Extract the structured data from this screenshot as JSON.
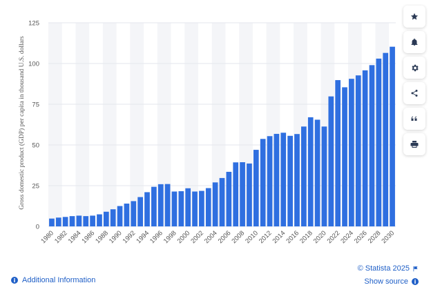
{
  "chart_data": {
    "type": "bar",
    "title": "",
    "xlabel": "",
    "ylabel": "Gross domestic product (GDP) per capita in thousand U.S. dollars",
    "ylim": [
      0,
      125
    ],
    "yticks": [
      0,
      25,
      50,
      75,
      100,
      125
    ],
    "grid": true,
    "bar_color": "#2f6fe0",
    "categories": [
      "1980",
      "1981",
      "1982",
      "1983",
      "1984",
      "1985",
      "1986",
      "1987",
      "1988",
      "1989",
      "1990",
      "1991",
      "1992",
      "1993",
      "1994",
      "1995",
      "1996",
      "1997",
      "1998",
      "1999",
      "2000",
      "2001",
      "2002",
      "2003",
      "2004",
      "2005",
      "2006",
      "2007",
      "2008",
      "2009",
      "2010",
      "2011",
      "2012",
      "2013",
      "2014",
      "2015",
      "2016",
      "2017",
      "2018",
      "2019",
      "2020",
      "2021",
      "2022",
      "2023",
      "2024",
      "2025",
      "2026",
      "2027",
      "2028",
      "2029",
      "2030"
    ],
    "values": [
      4.8,
      5.4,
      5.8,
      6.3,
      6.6,
      6.3,
      6.6,
      7.4,
      9.0,
      10.5,
      12.5,
      14.0,
      15.5,
      18.0,
      21.0,
      24.3,
      25.9,
      26.0,
      21.4,
      21.6,
      23.4,
      21.4,
      21.8,
      23.5,
      27.0,
      29.7,
      33.5,
      39.3,
      39.4,
      38.6,
      47.0,
      53.7,
      55.4,
      56.8,
      57.5,
      55.6,
      56.7,
      61.3,
      67.0,
      65.5,
      61.3,
      79.8,
      89.8,
      85.4,
      90.6,
      92.7,
      95.8,
      99.0,
      103.0,
      106.5,
      110.3
    ],
    "xtick_labels": [
      "1980",
      "1982",
      "1984",
      "1986",
      "1988",
      "1990",
      "1992",
      "1994",
      "1996",
      "1998",
      "2000",
      "2002",
      "2004",
      "2006",
      "2008",
      "2010",
      "2012",
      "2014",
      "2016",
      "2018",
      "2020",
      "2022",
      "2024",
      "2026",
      "2028",
      "2030"
    ]
  },
  "footer": {
    "additional_info": "Additional Information",
    "credit": "© Statista 2025",
    "show_source": "Show source"
  },
  "toolbar": {
    "icons": [
      "star-icon",
      "bell-icon",
      "gear-icon",
      "share-icon",
      "quote-icon",
      "print-icon"
    ]
  }
}
